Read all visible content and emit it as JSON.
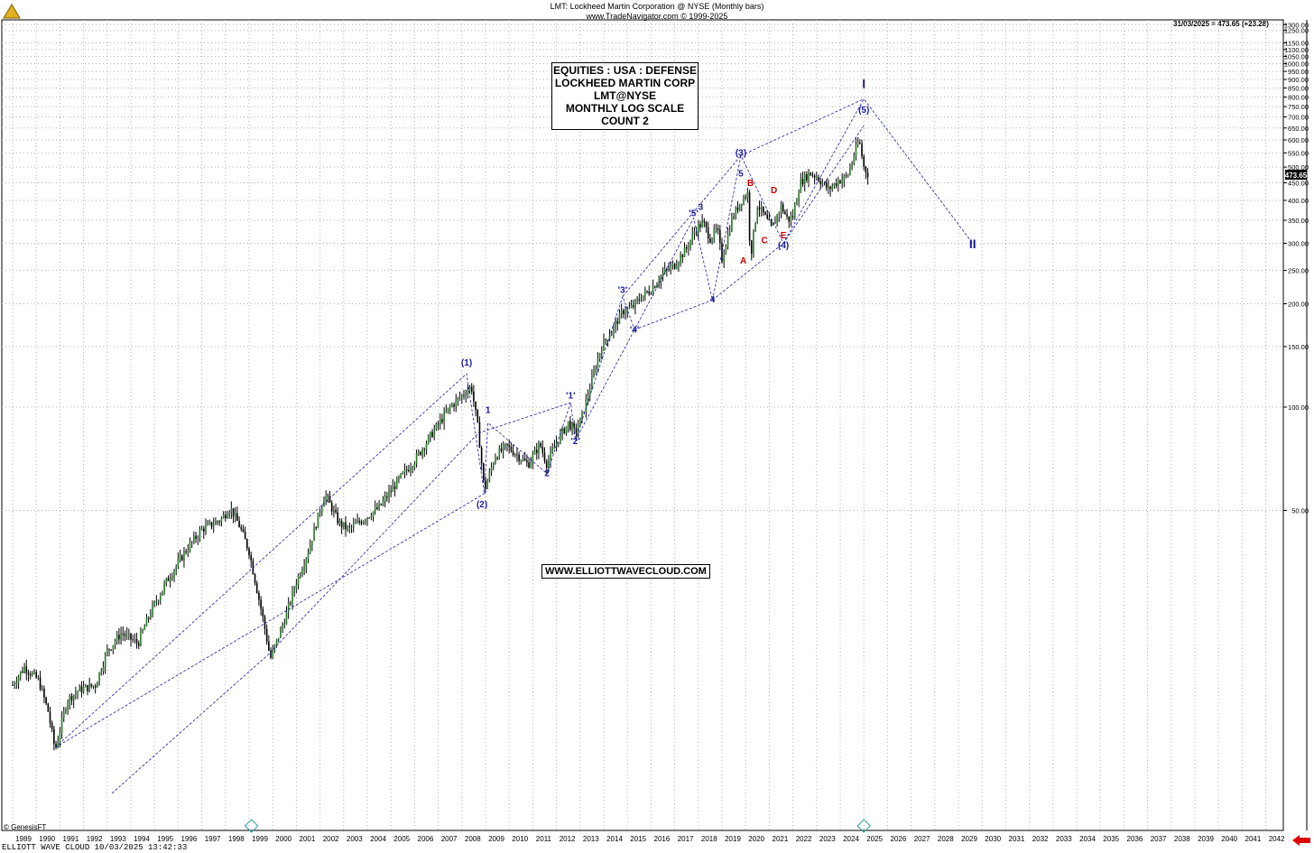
{
  "header": {
    "title": "LMT:  Lockheed Martin Corporation @ NYSE  (Monthly bars)",
    "subtitle": "www.TradeNavigator.com © 1999-2025"
  },
  "info_box": {
    "lines": [
      "EQUITIES : USA : DEFENSE",
      "LOCKHEED MARTIN CORP",
      "LMT@NYSE",
      "MONTHLY LOG SCALE",
      "COUNT 2"
    ]
  },
  "website": "WWW.ELLIOTTWAVECLOUD.COM",
  "last_price_text": "31/03/2025 = 473.65 (+23.28)",
  "price_tag": "473.65",
  "copyright": "© GenesisFT",
  "footer_text": "ELLIOTT WAVE CLOUD    10/03/2025 13:42:33",
  "colors": {
    "wave_blue": "#1a1aa0",
    "wave_red": "#cc0000",
    "bars": "#000000",
    "up_body": "#2a7a2a",
    "grid": "#b0b0b0",
    "badge": "#2aa0a0",
    "arrow": "#dd0000"
  },
  "chart_data": {
    "type": "line",
    "scale": "log",
    "y_ticks": [
      "1300.00",
      "1250.00",
      "1150.00",
      "1100.00",
      "1050.00",
      "1000.00",
      "950.00",
      "900.00",
      "850.00",
      "800.00",
      "750.00",
      "700.00",
      "650.00",
      "600.00",
      "550.00",
      "500.00",
      "450.00",
      "400.00",
      "350.00",
      "300.00",
      "250.00",
      "200.00",
      "150.00",
      "100.00",
      "50.00"
    ],
    "x_ticks": [
      "1989",
      "1990",
      "1991",
      "1992",
      "1993",
      "1994",
      "1995",
      "1996",
      "1997",
      "1998",
      "1999",
      "2000",
      "2001",
      "2002",
      "2003",
      "2004",
      "2005",
      "2006",
      "2007",
      "2008",
      "2009",
      "2010",
      "2011",
      "2012",
      "2013",
      "2014",
      "2015",
      "2016",
      "2017",
      "2018",
      "2019",
      "2020",
      "2021",
      "2022",
      "2023",
      "2024",
      "2025",
      "2026",
      "2027",
      "2028",
      "2029",
      "2030",
      "2031",
      "2032",
      "2033",
      "2034",
      "2035",
      "2036",
      "2037",
      "2038",
      "2039",
      "2040",
      "2041",
      "2042"
    ],
    "series": [
      {
        "values": [
          {
            "x": "1989.0",
            "y": 15.5
          },
          {
            "x": "1989.5",
            "y": 17.5
          },
          {
            "x": "1990.1",
            "y": 16.0
          },
          {
            "x": "1990.5",
            "y": 13.0
          },
          {
            "x": "1990.8",
            "y": 10.0
          },
          {
            "x": "1991.3",
            "y": 14.0
          },
          {
            "x": "1991.8",
            "y": 15.0
          },
          {
            "x": "1992.5",
            "y": 15.5
          },
          {
            "x": "1993.0",
            "y": 19.5
          },
          {
            "x": "1993.6",
            "y": 22.0
          },
          {
            "x": "1994.3",
            "y": 20.5
          },
          {
            "x": "1994.8",
            "y": 25.0
          },
          {
            "x": "1995.5",
            "y": 31.0
          },
          {
            "x": "1996.3",
            "y": 38.0
          },
          {
            "x": "1997.0",
            "y": 44.0
          },
          {
            "x": "1997.8",
            "y": 47.0
          },
          {
            "x": "1998.2",
            "y": 51.0
          },
          {
            "x": "1998.6",
            "y": 45.0
          },
          {
            "x": "1999.0",
            "y": 38.0
          },
          {
            "x": "1999.6",
            "y": 24.0
          },
          {
            "x": "1999.9",
            "y": 18.5
          },
          {
            "x": "2000.5",
            "y": 24.0
          },
          {
            "x": "2001.0",
            "y": 31.0
          },
          {
            "x": "2001.5",
            "y": 38.0
          },
          {
            "x": "2002.2",
            "y": 56.0
          },
          {
            "x": "2002.8",
            "y": 46.0
          },
          {
            "x": "2003.2",
            "y": 44.0
          },
          {
            "x": "2003.8",
            "y": 47.0
          },
          {
            "x": "2004.5",
            "y": 51.0
          },
          {
            "x": "2005.3",
            "y": 61.0
          },
          {
            "x": "2006.0",
            "y": 70.0
          },
          {
            "x": "2006.8",
            "y": 85.0
          },
          {
            "x": "2007.5",
            "y": 100.0
          },
          {
            "x": "2008.0",
            "y": 108.0
          },
          {
            "x": "2008.4",
            "y": 115.0
          },
          {
            "x": "2008.7",
            "y": 85.0
          },
          {
            "x": "2008.95",
            "y": 57.0
          },
          {
            "x": "2009.4",
            "y": 72.0
          },
          {
            "x": "2009.9",
            "y": 77.0
          },
          {
            "x": "2010.4",
            "y": 72.0
          },
          {
            "x": "2010.8",
            "y": 68.0
          },
          {
            "x": "2011.3",
            "y": 78.0
          },
          {
            "x": "2011.6",
            "y": 68.0
          },
          {
            "x": "2012.0",
            "y": 79.0
          },
          {
            "x": "2012.5",
            "y": 90.0
          },
          {
            "x": "2012.8",
            "y": 84.0
          },
          {
            "x": "2013.1",
            "y": 95.0
          },
          {
            "x": "2013.5",
            "y": 120.0
          },
          {
            "x": "2013.9",
            "y": 150.0
          },
          {
            "x": "2014.4",
            "y": 170.0
          },
          {
            "x": "2014.8",
            "y": 190.0
          },
          {
            "x": "2015.2",
            "y": 195.0
          },
          {
            "x": "2015.6",
            "y": 210.0
          },
          {
            "x": "2016.0",
            "y": 220.0
          },
          {
            "x": "2016.5",
            "y": 245.0
          },
          {
            "x": "2017.0",
            "y": 260.0
          },
          {
            "x": "2017.5",
            "y": 290.0
          },
          {
            "x": "2017.9",
            "y": 330.0
          },
          {
            "x": "2018.2",
            "y": 345.0
          },
          {
            "x": "2018.5",
            "y": 310.0
          },
          {
            "x": "2018.8",
            "y": 330.0
          },
          {
            "x": "2019.0",
            "y": 270.0
          },
          {
            "x": "2019.4",
            "y": 350.0
          },
          {
            "x": "2019.8",
            "y": 400.0
          },
          {
            "x": "2020.1",
            "y": 420.0
          },
          {
            "x": "2020.2",
            "y": 270.0
          },
          {
            "x": "2020.5",
            "y": 390.0
          },
          {
            "x": "2020.8",
            "y": 360.0
          },
          {
            "x": "2021.1",
            "y": 330.0
          },
          {
            "x": "2021.5",
            "y": 385.0
          },
          {
            "x": "2021.8",
            "y": 350.0
          },
          {
            "x": "2022.0",
            "y": 360.0
          },
          {
            "x": "2022.3",
            "y": 450.0
          },
          {
            "x": "2022.7",
            "y": 480.0
          },
          {
            "x": "2023.0",
            "y": 470.0
          },
          {
            "x": "2023.5",
            "y": 430.0
          },
          {
            "x": "2023.9",
            "y": 455.0
          },
          {
            "x": "2024.3",
            "y": 470.0
          },
          {
            "x": "2024.8",
            "y": 600.0
          },
          {
            "x": "2025.0",
            "y": 500.0
          },
          {
            "x": "2025.2",
            "y": 473.65
          }
        ]
      }
    ],
    "wave_labels": [
      {
        "text": "(1)",
        "x": "2008.2",
        "y": 132,
        "color": "blue"
      },
      {
        "text": "(2)",
        "x": "2008.85",
        "y": 51,
        "color": "blue"
      },
      {
        "text": "1",
        "x": "2009.1",
        "y": 96,
        "color": "blue"
      },
      {
        "text": "2",
        "x": "2011.6",
        "y": 63,
        "color": "blue"
      },
      {
        "text": "'1'",
        "x": "2012.6",
        "y": 106,
        "color": "blue"
      },
      {
        "text": "'2'",
        "x": "2012.8",
        "y": 78,
        "color": "blue"
      },
      {
        "text": "'3'",
        "x": "2014.8",
        "y": 215,
        "color": "blue"
      },
      {
        "text": "'4'",
        "x": "2015.3",
        "y": 165,
        "color": "blue"
      },
      {
        "text": "'5'",
        "x": "2017.8",
        "y": 360,
        "color": "blue"
      },
      {
        "text": "3",
        "x": "2018.1",
        "y": 375,
        "color": "blue"
      },
      {
        "text": "4",
        "x": "2018.6",
        "y": 202,
        "color": "blue"
      },
      {
        "text": "5",
        "x": "2019.8",
        "y": 470,
        "color": "blue"
      },
      {
        "text": "(3)",
        "x": "2019.8",
        "y": 540,
        "color": "blue"
      },
      {
        "text": "A",
        "x": "2019.9",
        "y": 262,
        "color": "red"
      },
      {
        "text": "B",
        "x": "2020.2",
        "y": 440,
        "color": "red"
      },
      {
        "text": "C",
        "x": "2020.8",
        "y": 300,
        "color": "red"
      },
      {
        "text": "D",
        "x": "2021.2",
        "y": 420,
        "color": "red"
      },
      {
        "text": "E",
        "x": "2021.6",
        "y": 310,
        "color": "red"
      },
      {
        "text": "(4)",
        "x": "2021.6",
        "y": 290,
        "color": "blue"
      },
      {
        "text": "(5)",
        "x": "2025.0",
        "y": 720,
        "color": "blue"
      },
      {
        "text": "I",
        "x": "2025.0",
        "y": 850,
        "color": "blue"
      },
      {
        "text": "II",
        "x": "2029.6",
        "y": 290,
        "color": "blue"
      }
    ]
  }
}
